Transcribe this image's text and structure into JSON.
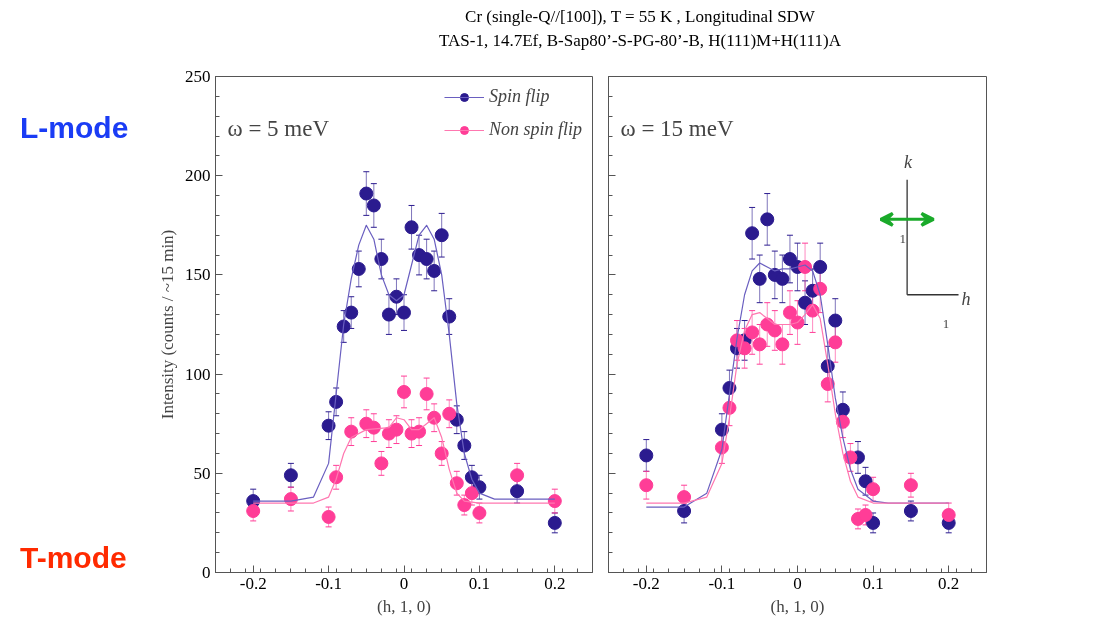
{
  "chart_data": [
    {
      "type": "scatter",
      "title": "Cr (single-Q//[100]), T = 55 K , Longitudinal SDW",
      "subtitle": "TAS-1, 14.7Ef, B-Sap80’-S-PG-80’-B, H(111)M+H(111)A",
      "xlabel": "(h, 1, 0)",
      "ylabel": "Intensity (counts / ~15 min)",
      "annotations": [
        "ω = 5 meV",
        "L-mode",
        "T-mode"
      ],
      "xlim": [
        -0.25,
        0.25
      ],
      "ylim": [
        0,
        250
      ],
      "xticks": [
        -0.2,
        -0.1,
        0,
        0.1,
        0.2
      ],
      "yticks": [
        0,
        50,
        100,
        150,
        200,
        250
      ],
      "grid": false,
      "legend": "top right",
      "marker": "circle",
      "line_style": "solid",
      "series": [
        {
          "name": "Spin flip",
          "color": "#2b1b8f",
          "x": [
            -0.2,
            -0.15,
            -0.1,
            -0.09,
            -0.08,
            -0.07,
            -0.06,
            -0.05,
            -0.04,
            -0.03,
            -0.02,
            -0.01,
            0,
            0.01,
            0.02,
            0.03,
            0.04,
            0.05,
            0.06,
            0.07,
            0.08,
            0.09,
            0.1,
            0.15,
            0.2
          ],
          "values": [
            36,
            49,
            74,
            86,
            124,
            131,
            153,
            191,
            185,
            158,
            130,
            139,
            131,
            174,
            160,
            158,
            152,
            170,
            129,
            77,
            64,
            48,
            43,
            41,
            25
          ],
          "errors": [
            6,
            6,
            7,
            7,
            8,
            8,
            9,
            11,
            11,
            10,
            10,
            9,
            9,
            11,
            10,
            10,
            10,
            11,
            9,
            7,
            7,
            6,
            6,
            6,
            5
          ]
        },
        {
          "name": "Non spin flip",
          "color": "#ff3d97",
          "x": [
            -0.2,
            -0.15,
            -0.1,
            -0.09,
            -0.07,
            -0.05,
            -0.04,
            -0.03,
            -0.02,
            -0.01,
            0,
            0.01,
            0.02,
            0.03,
            0.04,
            0.05,
            0.06,
            0.07,
            0.08,
            0.09,
            0.1,
            0.15,
            0.2
          ],
          "values": [
            31,
            37,
            28,
            48,
            71,
            75,
            73,
            55,
            70,
            72,
            91,
            70,
            71,
            90,
            78,
            60,
            80,
            45,
            34,
            40,
            30,
            49,
            36
          ],
          "errors": [
            5,
            6,
            5,
            6,
            7,
            7,
            7,
            6,
            7,
            7,
            8,
            7,
            7,
            8,
            7,
            6,
            7,
            6,
            5,
            6,
            5,
            6,
            6
          ]
        },
        {
          "type": "line",
          "marker": "none",
          "color": "#6a5fc0",
          "x": [
            -0.2,
            -0.15,
            -0.12,
            -0.1,
            -0.09,
            -0.08,
            -0.07,
            -0.06,
            -0.05,
            -0.04,
            -0.03,
            -0.02,
            -0.01,
            0,
            0.01,
            0.02,
            0.03,
            0.04,
            0.05,
            0.06,
            0.07,
            0.08,
            0.09,
            0.1,
            0.12,
            0.2
          ],
          "values": [
            36,
            36,
            38,
            55,
            90,
            125,
            148,
            165,
            175,
            168,
            150,
            140,
            137,
            140,
            155,
            170,
            175,
            168,
            150,
            120,
            85,
            60,
            47,
            40,
            37,
            37
          ]
        },
        {
          "type": "line",
          "marker": "none",
          "color": "#ff77b0",
          "x": [
            -0.2,
            -0.15,
            -0.12,
            -0.1,
            -0.09,
            -0.08,
            -0.07,
            -0.05,
            -0.02,
            -0.01,
            0,
            0.01,
            0.02,
            0.03,
            0.04,
            0.05,
            0.06,
            0.07,
            0.08,
            0.1,
            0.2
          ],
          "values": [
            35,
            35,
            35,
            38,
            47,
            60,
            68,
            72,
            73,
            78,
            77,
            72,
            72,
            75,
            78,
            68,
            52,
            40,
            36,
            35,
            35
          ]
        }
      ]
    },
    {
      "type": "scatter",
      "xlabel": "(h, 1, 0)",
      "annotations": [
        "ω = 15 meV",
        "k",
        "h",
        "1",
        "1"
      ],
      "xlim": [
        -0.25,
        0.25
      ],
      "ylim": [
        0,
        250
      ],
      "xticks": [
        -0.2,
        -0.1,
        0,
        0.1,
        0.2
      ],
      "yticks": [
        0,
        50,
        100,
        150,
        200,
        250
      ],
      "tick_labels": "x",
      "grid": false,
      "marker": "circle",
      "line_style": "solid",
      "series": [
        {
          "color": "#2b1b8f",
          "x": [
            -0.2,
            -0.15,
            -0.1,
            -0.09,
            -0.08,
            -0.07,
            -0.06,
            -0.05,
            -0.04,
            -0.03,
            -0.02,
            -0.01,
            0,
            0.01,
            0.02,
            0.03,
            0.04,
            0.05,
            0.06,
            0.08,
            0.09,
            0.1,
            0.15,
            0.2
          ],
          "values": [
            59,
            31,
            72,
            93,
            113,
            117,
            171,
            148,
            178,
            150,
            148,
            158,
            154,
            136,
            142,
            154,
            104,
            127,
            82,
            58,
            46,
            25,
            31,
            25
          ],
          "errors": [
            8,
            6,
            8,
            9,
            10,
            10,
            13,
            12,
            13,
            12,
            12,
            12,
            12,
            11,
            11,
            12,
            10,
            11,
            9,
            8,
            7,
            5,
            5,
            5
          ]
        },
        {
          "color": "#ff3d97",
          "x": [
            -0.2,
            -0.15,
            -0.1,
            -0.09,
            -0.08,
            -0.07,
            -0.06,
            -0.05,
            -0.04,
            -0.03,
            -0.02,
            -0.01,
            0,
            0.01,
            0.02,
            0.03,
            0.04,
            0.05,
            0.06,
            0.07,
            0.08,
            0.09,
            0.1,
            0.15,
            0.2
          ],
          "values": [
            44,
            38,
            63,
            83,
            117,
            113,
            121,
            115,
            125,
            122,
            115,
            131,
            126,
            154,
            132,
            143,
            95,
            116,
            76,
            58,
            27,
            29,
            42,
            44,
            29
          ],
          "errors": [
            7,
            6,
            8,
            9,
            10,
            10,
            11,
            10,
            11,
            10,
            10,
            11,
            11,
            12,
            11,
            12,
            9,
            10,
            8,
            7,
            5,
            5,
            6,
            6,
            6
          ]
        },
        {
          "type": "line",
          "marker": "none",
          "color": "#6a5fc0",
          "x": [
            -0.2,
            -0.15,
            -0.12,
            -0.1,
            -0.09,
            -0.08,
            -0.07,
            -0.06,
            -0.05,
            -0.04,
            -0.03,
            -0.02,
            -0.01,
            0,
            0.01,
            0.02,
            0.03,
            0.04,
            0.05,
            0.06,
            0.07,
            0.08,
            0.1,
            0.12,
            0.2
          ],
          "values": [
            33,
            33,
            40,
            62,
            90,
            118,
            140,
            152,
            156,
            154,
            152,
            153,
            153,
            154,
            155,
            152,
            140,
            115,
            88,
            68,
            52,
            42,
            36,
            35,
            35
          ]
        },
        {
          "type": "line",
          "marker": "none",
          "color": "#ff77b0",
          "x": [
            -0.2,
            -0.15,
            -0.12,
            -0.1,
            -0.09,
            -0.08,
            -0.07,
            -0.06,
            -0.05,
            -0.04,
            -0.03,
            -0.02,
            -0.01,
            0,
            0.01,
            0.02,
            0.03,
            0.04,
            0.05,
            0.06,
            0.07,
            0.08,
            0.1,
            0.2
          ],
          "values": [
            35,
            35,
            38,
            55,
            78,
            105,
            122,
            130,
            131,
            128,
            125,
            125,
            125,
            126,
            130,
            135,
            128,
            105,
            80,
            60,
            46,
            38,
            35,
            35
          ]
        }
      ]
    }
  ]
}
